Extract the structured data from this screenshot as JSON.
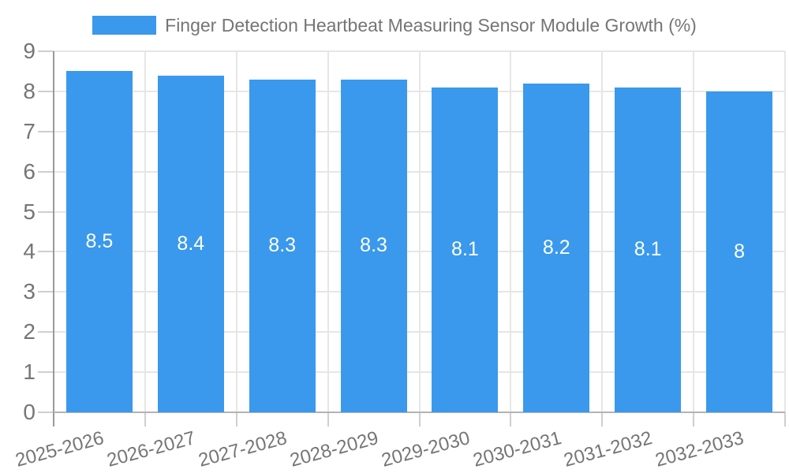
{
  "chart_data": {
    "type": "bar",
    "title": "Finger Detection Heartbeat Measuring Sensor Module Growth (%)",
    "categories": [
      "2025-2026",
      "2026-2027",
      "2027-2028",
      "2028-2029",
      "2029-2030",
      "2030-2031",
      "2031-2032",
      "2032-2033"
    ],
    "values": [
      8.5,
      8.4,
      8.3,
      8.3,
      8.1,
      8.2,
      8.1,
      8
    ],
    "data_labels": [
      "8.5",
      "8.4",
      "8.3",
      "8.3",
      "8.1",
      "8.2",
      "8.1",
      "8"
    ],
    "xlabel": "",
    "ylabel": "",
    "y_ticks": [
      0,
      1,
      2,
      3,
      4,
      5,
      6,
      7,
      8,
      9
    ],
    "ylim": [
      0,
      9
    ],
    "grid": true,
    "legend_position": "top",
    "colors": {
      "bar": "#3A99EC",
      "bar_value_label": "#ffffff",
      "axis_text": "#757575",
      "gridline": "#e6e6e6",
      "tick": "#cfcfcf",
      "y_axis_line": "#999999",
      "x_axis_line": "#b3b3b3",
      "background": "#ffffff"
    }
  }
}
